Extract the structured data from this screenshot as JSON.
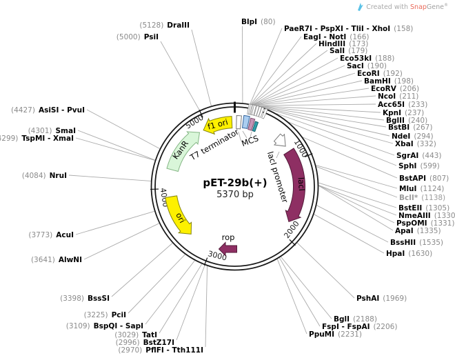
{
  "watermark": {
    "created_with": "Created with ",
    "brand_snap": "Snap",
    "brand_gene": "Gene",
    "reg": "®"
  },
  "plasmid": {
    "name": "pET-29b(+)",
    "size_label": "5370 bp",
    "length_bp": 5370
  },
  "ticks": [
    {
      "label": "1000",
      "bp": 1000
    },
    {
      "label": "2000",
      "bp": 2000
    },
    {
      "label": "3000",
      "bp": 3000
    },
    {
      "label": "4000",
      "bp": 4000
    },
    {
      "label": "5000",
      "bp": 5000
    }
  ],
  "features": [
    {
      "name": "T7 terminator",
      "kind": "box",
      "bp_from": 22,
      "bp_to": 82,
      "fill": "#ffffff",
      "stroke": "#777777"
    },
    {
      "name": "MCS",
      "kind": "boxes",
      "boxes": [
        {
          "fill": "#aacdf0",
          "stroke": "#33639c",
          "bp_from": 110,
          "bp_to": 180
        },
        {
          "fill": "#c493b4",
          "stroke": "#7e4a6e",
          "bp_from": 196,
          "bp_to": 248
        },
        {
          "fill": "#2f9fab",
          "stroke": "#19616b",
          "bp_from": 262,
          "bp_to": 300
        }
      ]
    },
    {
      "name": "lacI promoter",
      "kind": "arrow",
      "dir": "cw",
      "bp_from": 611,
      "bp_to": 768,
      "fill": "#ffffff",
      "stroke": "#777777"
    },
    {
      "name": "lacI",
      "kind": "arrow",
      "dir": "cw",
      "bp_from": 850,
      "bp_to": 1835,
      "fill": "#8e2f63",
      "stroke": "#541b3a",
      "label_color": "#ffffff"
    },
    {
      "name": "rop",
      "kind": "block",
      "fill": "#8e2f63",
      "stroke": "#541b3a"
    },
    {
      "name": "ori",
      "kind": "arrow",
      "dir": "ccw",
      "bp_from": 3320,
      "bp_to": 3893,
      "fill": "#fdf000",
      "stroke": "#84840e"
    },
    {
      "name": "KanR",
      "kind": "arrow",
      "dir": "cw",
      "bp_from": 4251,
      "bp_to": 4877,
      "fill": "#d9f6d9",
      "stroke": "#84b584"
    },
    {
      "name": "f1 ori",
      "kind": "arrow",
      "dir": "ccw",
      "bp_from": 4937,
      "bp_to": 5333,
      "fill": "#fdf000",
      "stroke": "#84840e"
    }
  ],
  "cluster_marker_bps": [
    158,
    173,
    188,
    198,
    211,
    233,
    240,
    267,
    294,
    332
  ],
  "sites": [
    {
      "name": "BlpI",
      "bp": 80,
      "pos_label": "(80)",
      "side": "right"
    },
    {
      "name": "PaeR7I - PspXI - TliI - XhoI",
      "bp": 158,
      "pos_label": "(158)",
      "side": "right"
    },
    {
      "name": "EagI - NotI",
      "bp": 166,
      "pos_label": "(166)",
      "side": "right"
    },
    {
      "name": "HindIII",
      "bp": 173,
      "pos_label": "(173)",
      "side": "right"
    },
    {
      "name": "SalI",
      "bp": 179,
      "pos_label": "(179)",
      "side": "right"
    },
    {
      "name": "Eco53kI",
      "bp": 188,
      "pos_label": "(188)",
      "side": "right"
    },
    {
      "name": "SacI",
      "bp": 190,
      "pos_label": "(190)",
      "side": "right"
    },
    {
      "name": "EcoRI",
      "bp": 192,
      "pos_label": "(192)",
      "side": "right"
    },
    {
      "name": "BamHI",
      "bp": 198,
      "pos_label": "(198)",
      "side": "right"
    },
    {
      "name": "EcoRV",
      "bp": 206,
      "pos_label": "(206)",
      "side": "right"
    },
    {
      "name": "NcoI",
      "bp": 211,
      "pos_label": "(211)",
      "side": "right"
    },
    {
      "name": "Acc65I",
      "bp": 233,
      "pos_label": "(233)",
      "side": "right"
    },
    {
      "name": "KpnI",
      "bp": 237,
      "pos_label": "(237)",
      "side": "right"
    },
    {
      "name": "BglII",
      "bp": 240,
      "pos_label": "(240)",
      "side": "right"
    },
    {
      "name": "BstBI",
      "bp": 267,
      "pos_label": "(267)",
      "side": "right"
    },
    {
      "name": "NdeI",
      "bp": 294,
      "pos_label": "(294)",
      "side": "right"
    },
    {
      "name": "XbaI",
      "bp": 332,
      "pos_label": "(332)",
      "side": "right"
    },
    {
      "name": "SgrAI",
      "bp": 443,
      "pos_label": "(443)",
      "side": "right"
    },
    {
      "name": "SphI",
      "bp": 599,
      "pos_label": "(599)",
      "side": "right"
    },
    {
      "name": "BstAPI",
      "bp": 807,
      "pos_label": "(807)",
      "side": "right"
    },
    {
      "name": "MluI",
      "bp": 1124,
      "pos_label": "(1124)",
      "side": "right"
    },
    {
      "name": "BclI*",
      "bp": 1138,
      "pos_label": "(1138)",
      "side": "right",
      "muted": true
    },
    {
      "name": "BstEII",
      "bp": 1305,
      "pos_label": "(1305)",
      "side": "right"
    },
    {
      "name": "NmeAIII",
      "bp": 1330,
      "pos_label": "(1330)",
      "side": "right"
    },
    {
      "name": "PspOMI",
      "bp": 1331,
      "pos_label": "(1331)",
      "side": "right"
    },
    {
      "name": "ApaI",
      "bp": 1335,
      "pos_label": "(1335)",
      "side": "right"
    },
    {
      "name": "BssHII",
      "bp": 1535,
      "pos_label": "(1535)",
      "side": "right"
    },
    {
      "name": "HpaI",
      "bp": 1630,
      "pos_label": "(1630)",
      "side": "right"
    },
    {
      "name": "PshAI",
      "bp": 1969,
      "pos_label": "(1969)",
      "side": "right"
    },
    {
      "name": "BglI",
      "bp": 2188,
      "pos_label": "(2188)",
      "side": "right"
    },
    {
      "name": "FspI - FspAI",
      "bp": 2206,
      "pos_label": "(2206)",
      "side": "right"
    },
    {
      "name": "PpuMI",
      "bp": 2231,
      "pos_label": "(2231)",
      "side": "right"
    },
    {
      "name": "PflFI - Tth111I",
      "bp": 2970,
      "pos_label": "(2970)",
      "side": "left"
    },
    {
      "name": "BstZ17I",
      "bp": 2996,
      "pos_label": "(2996)",
      "side": "left"
    },
    {
      "name": "TatI",
      "bp": 3029,
      "pos_label": "(3029)",
      "side": "left"
    },
    {
      "name": "BspQI - SapI",
      "bp": 3109,
      "pos_label": "(3109)",
      "side": "left"
    },
    {
      "name": "PciI",
      "bp": 3225,
      "pos_label": "(3225)",
      "side": "left"
    },
    {
      "name": "BssSI",
      "bp": 3398,
      "pos_label": "(3398)",
      "side": "left"
    },
    {
      "name": "AlwNI",
      "bp": 3641,
      "pos_label": "(3641)",
      "side": "left"
    },
    {
      "name": "AcuI",
      "bp": 3773,
      "pos_label": "(3773)",
      "side": "left"
    },
    {
      "name": "NruI",
      "bp": 4084,
      "pos_label": "(4084)",
      "side": "left"
    },
    {
      "name": "TspMI - XmaI",
      "bp": 4299,
      "pos_label": "(4299)",
      "side": "left"
    },
    {
      "name": "SmaI",
      "bp": 4301,
      "pos_label": "(4301)",
      "side": "left"
    },
    {
      "name": "AsiSI - PvuI",
      "bp": 4427,
      "pos_label": "(4427)",
      "side": "left"
    },
    {
      "name": "PsiI",
      "bp": 5000,
      "pos_label": "(5000)",
      "side": "left"
    },
    {
      "name": "DraIII",
      "bp": 5128,
      "pos_label": "(5128)",
      "side": "left"
    }
  ]
}
